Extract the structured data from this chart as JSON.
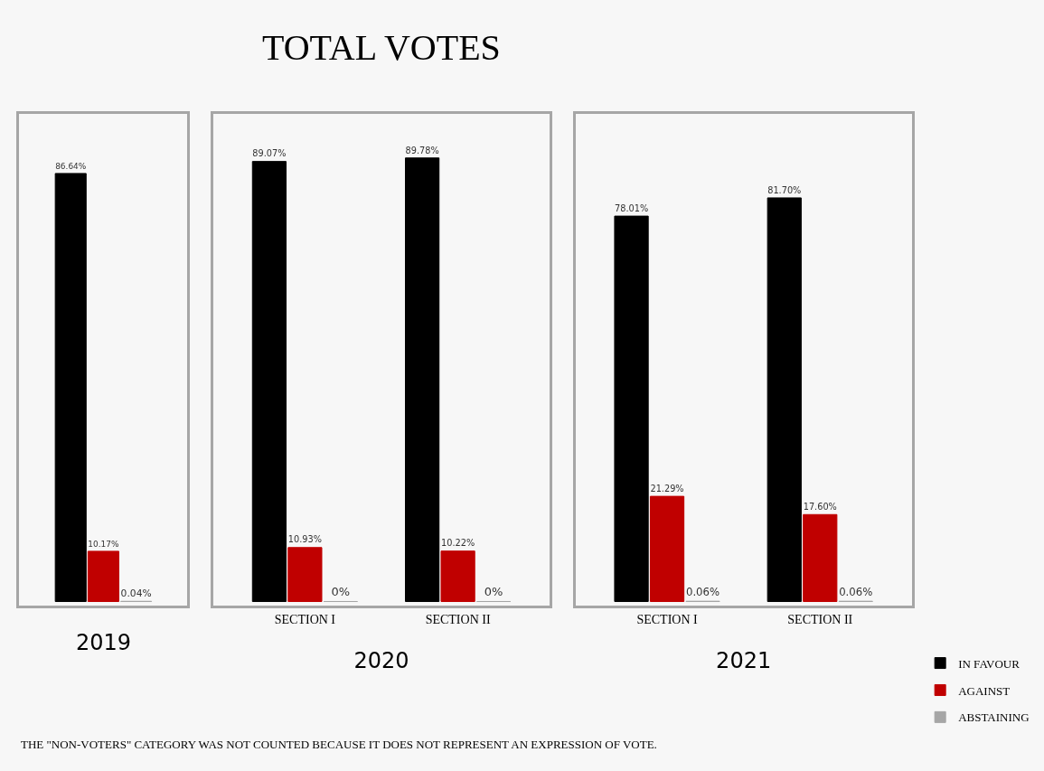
{
  "chart_data": [
    {
      "type": "bar",
      "xlabel": "2019",
      "categories": [
        null
      ],
      "series": [
        {
          "name": "IN FAVOUR",
          "color": "#000000",
          "values": [
            86.64
          ],
          "value_labels": [
            "86.64%"
          ]
        },
        {
          "name": "AGAINST",
          "color": "#c00000",
          "values": [
            10.17
          ],
          "value_labels": [
            "10.17%"
          ]
        },
        {
          "name": "ABSTAINING",
          "color": "#a6a6a6",
          "values": [
            0.04
          ],
          "value_labels": [
            "0.04%"
          ]
        }
      ],
      "legend": "bottom right",
      "tick_labels": false
    },
    {
      "type": "bar",
      "title": "TOTAL VOTES",
      "xlabel": "2020",
      "categories": [
        "SECTION I",
        "SECTION II"
      ],
      "series": [
        {
          "color": "#000000",
          "values": [
            89.07,
            89.78
          ],
          "value_labels": [
            "89.07%",
            "89.78%"
          ]
        },
        {
          "color": "#c00000",
          "values": [
            10.93,
            10.22
          ],
          "value_labels": [
            "10.93%",
            "10.22%"
          ]
        },
        {
          "color": "#a6a6a6",
          "values": [
            0,
            0
          ],
          "value_labels": [
            "0%",
            "0%"
          ]
        }
      ],
      "tick_labels": "x"
    },
    {
      "type": "bar",
      "xlabel": "2021",
      "categories": [
        "SECTION I",
        "SECTION II"
      ],
      "series": [
        {
          "color": "#000000",
          "values": [
            78.01,
            81.7
          ],
          "value_labels": [
            "78.01%",
            "81.70%"
          ]
        },
        {
          "color": "#c00000",
          "values": [
            21.29,
            17.6
          ],
          "value_labels": [
            "21.29%",
            "17.60%"
          ]
        },
        {
          "color": "#a6a6a6",
          "values": [
            0.06,
            0.06
          ],
          "value_labels": [
            "0.06%",
            "0.06%"
          ]
        }
      ],
      "tick_labels": "x",
      "annotations": [
        "THE \"NON-VOTERS\" CATEGORY WAS NOT COUNTED BECAUSE IT DOES NOT REPRESENT AN EXPRESSION OF VOTE."
      ]
    }
  ]
}
